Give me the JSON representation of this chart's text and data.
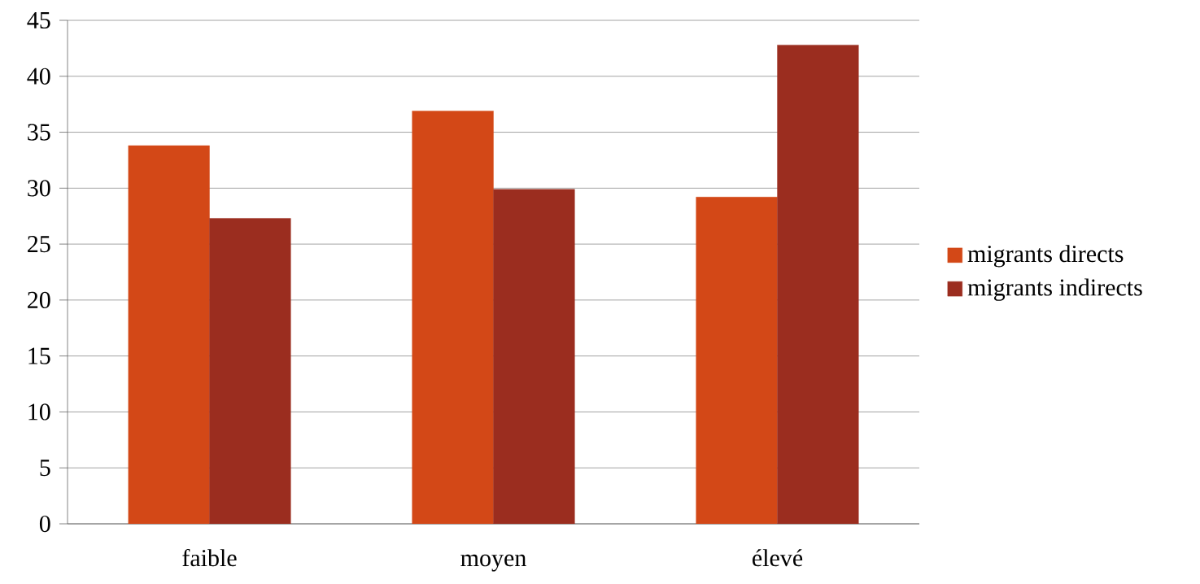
{
  "chart_data": {
    "type": "bar",
    "categories": [
      "faible",
      "moyen",
      "élevé"
    ],
    "series": [
      {
        "name": "migrants directs",
        "color": "#d34817",
        "values": [
          33.8,
          36.9,
          29.2
        ]
      },
      {
        "name": "migrants indirects",
        "color": "#9b2d1f",
        "values": [
          27.3,
          29.9,
          42.8
        ]
      }
    ],
    "ylim": [
      0,
      45
    ],
    "yticks": [
      0,
      5,
      10,
      15,
      20,
      25,
      30,
      35,
      40,
      45
    ],
    "grid": "y",
    "legend": "right"
  }
}
